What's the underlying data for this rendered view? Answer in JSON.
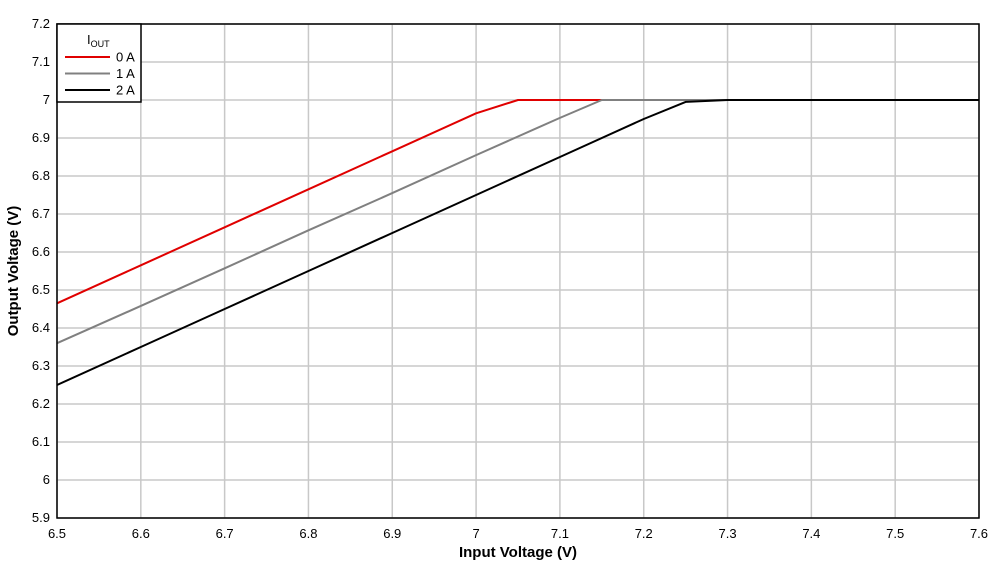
{
  "chart_data": {
    "type": "line",
    "xlabel": "Input Voltage (V)",
    "ylabel": "Output Voltage (V)",
    "xlim": [
      6.5,
      7.6
    ],
    "ylim": [
      5.9,
      7.2
    ],
    "xticks": [
      "6.5",
      "6.6",
      "6.7",
      "6.8",
      "6.9",
      "7",
      "7.1",
      "7.2",
      "7.3",
      "7.4",
      "7.5",
      "7.6"
    ],
    "yticks": [
      "5.9",
      "6",
      "6.1",
      "6.2",
      "6.3",
      "6.4",
      "6.5",
      "6.6",
      "6.7",
      "6.8",
      "6.9",
      "7",
      "7.1",
      "7.2"
    ],
    "grid": true,
    "legend": {
      "title_main": "I",
      "title_sub": "OUT",
      "placement": "top-left"
    },
    "series": [
      {
        "name": "0 A",
        "color": "#e00000",
        "x": [
          6.5,
          6.6,
          6.7,
          6.8,
          6.9,
          7.0,
          7.05,
          7.1,
          7.15,
          7.2,
          7.3,
          7.4,
          7.5,
          7.6
        ],
        "y": [
          6.465,
          6.565,
          6.665,
          6.765,
          6.865,
          6.965,
          7.0,
          7.0,
          7.0,
          7.0,
          7.0,
          7.0,
          7.0,
          7.0
        ]
      },
      {
        "name": "1 A",
        "color": "#808080",
        "x": [
          6.5,
          6.6,
          6.7,
          6.8,
          6.9,
          7.0,
          7.1,
          7.15,
          7.2,
          7.3,
          7.4,
          7.5,
          7.6
        ],
        "y": [
          6.36,
          6.458,
          6.557,
          6.657,
          6.755,
          6.855,
          6.953,
          7.0,
          7.0,
          7.0,
          7.0,
          7.0,
          7.0
        ]
      },
      {
        "name": "2 A",
        "color": "#000000",
        "x": [
          6.5,
          6.6,
          6.7,
          6.8,
          6.9,
          7.0,
          7.1,
          7.2,
          7.25,
          7.3,
          7.4,
          7.5,
          7.6
        ],
        "y": [
          6.25,
          6.35,
          6.45,
          6.55,
          6.65,
          6.75,
          6.85,
          6.95,
          6.995,
          7.0,
          7.0,
          7.0,
          7.0
        ]
      }
    ]
  }
}
